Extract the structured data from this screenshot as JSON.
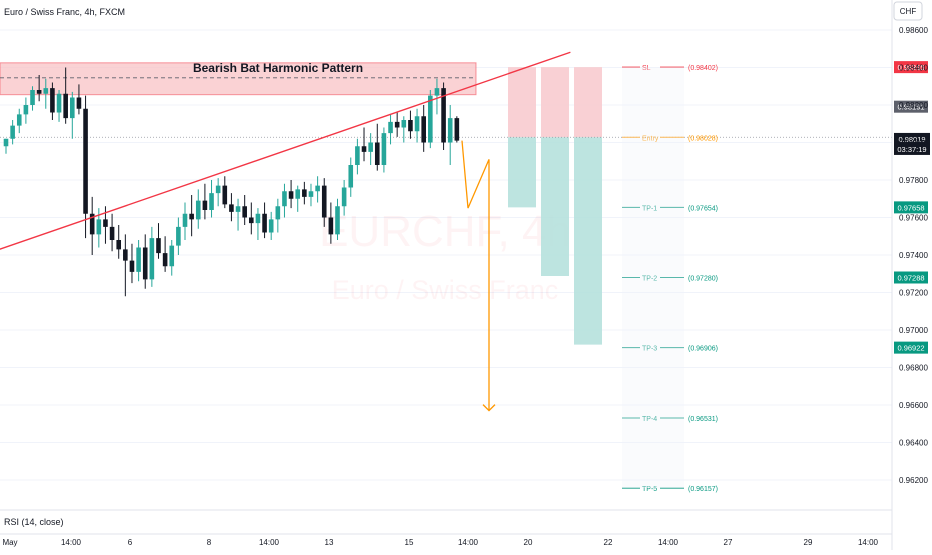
{
  "header": {
    "symbol_line": "Euro / Swiss Franc, 4h, FXCM"
  },
  "watermark": {
    "ticker": "EURCHF, 4h",
    "name": "Euro / Swiss Franc"
  },
  "currency_button": "CHF",
  "pattern_title": "Bearish Bat Harmonic Pattern",
  "rsi_label": "RSI (14, close)",
  "colors": {
    "up": "#26a69a",
    "down": "#131722",
    "trend": "#f23645",
    "zone_fill": "#f8c3c6",
    "profit_fill": "#b2dfdb",
    "loss_fill": "#f8c8cc",
    "projection": "#ff9800",
    "entry": "#ff9800",
    "sl": "#f23645",
    "tp": "#089981"
  },
  "chart_data": {
    "type": "candlestick",
    "title": "Euro / Swiss Franc, 4h, FXCM",
    "annotation": "Bearish Bat Harmonic Pattern",
    "ylim": [
      0.9604,
      0.9876
    ],
    "y_ticks": [
      "0.98600",
      "0.98400",
      "0.98200",
      "0.98000",
      "0.97800",
      "0.97600",
      "0.97400",
      "0.97200",
      "0.97000",
      "0.96800",
      "0.96600",
      "0.96400",
      "0.96200"
    ],
    "x_ticks": [
      "May",
      "14:00",
      "6",
      "8",
      "14:00",
      "13",
      "15",
      "14:00",
      "20",
      "22",
      "14:00",
      "27",
      "29",
      "14:00"
    ],
    "resistance_zone": [
      0.98255,
      0.98425
    ],
    "resistance_dashed": 0.98345,
    "current_price": {
      "value": "0.98019",
      "countdown": "03:37:19"
    },
    "last_close_label": "0.98191",
    "levels": [
      {
        "name": "SL",
        "value": "(0.98402)",
        "axis": "0.98395",
        "kind": "sl"
      },
      {
        "name": "Entry",
        "value": "(0.98028)",
        "kind": "entry"
      },
      {
        "name": "TP-1",
        "value": "(0.97654)",
        "axis": "0.97658",
        "kind": "tp"
      },
      {
        "name": "TP-2",
        "value": "(0.97280)",
        "axis": "0.97288",
        "kind": "tp"
      },
      {
        "name": "TP-3",
        "value": "(0.96906)",
        "axis": "0.96922",
        "kind": "tp"
      },
      {
        "name": "TP-4",
        "value": "(0.96531)",
        "kind": "tp"
      },
      {
        "name": "TP-5",
        "value": "(0.96157)",
        "kind": "tp"
      }
    ],
    "trade_boxes": [
      {
        "entry": 0.98028,
        "stop": 0.98402,
        "target": 0.97654
      },
      {
        "entry": 0.98028,
        "stop": 0.98402,
        "target": 0.97288
      },
      {
        "entry": 0.98028,
        "stop": 0.98402,
        "target": 0.96922
      }
    ],
    "trendline": [
      [
        -1,
        0.9743
      ],
      [
        80,
        0.9846
      ]
    ],
    "projection": [
      [
        0.9801,
        0.9787
      ],
      [
        0.9767,
        0.9791
      ],
      [
        0.9657,
        0
      ]
    ],
    "candles": [
      [
        0.9798,
        0.9802,
        0.9794,
        0.9802
      ],
      [
        0.9802,
        0.9812,
        0.9799,
        0.9809
      ],
      [
        0.9809,
        0.9818,
        0.9805,
        0.9815
      ],
      [
        0.9815,
        0.9824,
        0.981,
        0.982
      ],
      [
        0.982,
        0.983,
        0.9817,
        0.9828
      ],
      [
        0.9828,
        0.9836,
        0.9822,
        0.9826
      ],
      [
        0.9826,
        0.9834,
        0.9818,
        0.9829
      ],
      [
        0.9829,
        0.9832,
        0.9812,
        0.9816
      ],
      [
        0.9816,
        0.9828,
        0.9811,
        0.9826
      ],
      [
        0.9826,
        0.984,
        0.981,
        0.9813
      ],
      [
        0.9813,
        0.9827,
        0.9802,
        0.9824
      ],
      [
        0.9824,
        0.9831,
        0.9815,
        0.9818
      ],
      [
        0.9818,
        0.9825,
        0.9749,
        0.9762
      ],
      [
        0.9762,
        0.9771,
        0.974,
        0.9751
      ],
      [
        0.9751,
        0.9765,
        0.9744,
        0.9759
      ],
      [
        0.9759,
        0.9766,
        0.9746,
        0.9755
      ],
      [
        0.9755,
        0.9762,
        0.9742,
        0.9748
      ],
      [
        0.9748,
        0.9756,
        0.9738,
        0.9743
      ],
      [
        0.9743,
        0.9751,
        0.9718,
        0.9737
      ],
      [
        0.9737,
        0.9746,
        0.9725,
        0.9731
      ],
      [
        0.9731,
        0.9748,
        0.9726,
        0.9744
      ],
      [
        0.9744,
        0.9751,
        0.9722,
        0.9727
      ],
      [
        0.9727,
        0.9755,
        0.9723,
        0.9749
      ],
      [
        0.9749,
        0.9757,
        0.9738,
        0.9741
      ],
      [
        0.9741,
        0.975,
        0.9731,
        0.9734
      ],
      [
        0.9734,
        0.9748,
        0.9729,
        0.9745
      ],
      [
        0.9745,
        0.976,
        0.974,
        0.9755
      ],
      [
        0.9755,
        0.9768,
        0.9748,
        0.9762
      ],
      [
        0.9762,
        0.9772,
        0.975,
        0.9759
      ],
      [
        0.9759,
        0.9775,
        0.9754,
        0.9769
      ],
      [
        0.9769,
        0.9778,
        0.9759,
        0.9764
      ],
      [
        0.9764,
        0.978,
        0.976,
        0.9773
      ],
      [
        0.9773,
        0.9781,
        0.9766,
        0.9777
      ],
      [
        0.9777,
        0.9782,
        0.9765,
        0.9767
      ],
      [
        0.9767,
        0.9773,
        0.9758,
        0.9763
      ],
      [
        0.9763,
        0.977,
        0.9753,
        0.9766
      ],
      [
        0.9766,
        0.9772,
        0.9756,
        0.976
      ],
      [
        0.976,
        0.9768,
        0.9751,
        0.9757
      ],
      [
        0.9757,
        0.9765,
        0.9748,
        0.9762
      ],
      [
        0.9762,
        0.9768,
        0.9749,
        0.9752
      ],
      [
        0.9752,
        0.9763,
        0.9748,
        0.9759
      ],
      [
        0.9759,
        0.977,
        0.9752,
        0.9766
      ],
      [
        0.9766,
        0.9778,
        0.976,
        0.9774
      ],
      [
        0.9774,
        0.978,
        0.9765,
        0.977
      ],
      [
        0.977,
        0.9777,
        0.9763,
        0.9775
      ],
      [
        0.9775,
        0.9779,
        0.9767,
        0.9771
      ],
      [
        0.9771,
        0.9778,
        0.9766,
        0.9774
      ],
      [
        0.9774,
        0.9782,
        0.9768,
        0.9777
      ],
      [
        0.9777,
        0.9781,
        0.9755,
        0.976
      ],
      [
        0.976,
        0.9768,
        0.9746,
        0.9751
      ],
      [
        0.9751,
        0.977,
        0.9748,
        0.9766
      ],
      [
        0.9766,
        0.978,
        0.9761,
        0.9776
      ],
      [
        0.9776,
        0.9792,
        0.9771,
        0.9788
      ],
      [
        0.9788,
        0.9802,
        0.9783,
        0.9798
      ],
      [
        0.9798,
        0.9808,
        0.979,
        0.9795
      ],
      [
        0.9795,
        0.9805,
        0.9788,
        0.98
      ],
      [
        0.98,
        0.981,
        0.9785,
        0.9788
      ],
      [
        0.9788,
        0.9808,
        0.9784,
        0.9805
      ],
      [
        0.9805,
        0.9815,
        0.9799,
        0.9811
      ],
      [
        0.9811,
        0.9816,
        0.9803,
        0.9808
      ],
      [
        0.9808,
        0.9814,
        0.98,
        0.9812
      ],
      [
        0.9812,
        0.9817,
        0.9802,
        0.9806
      ],
      [
        0.9806,
        0.9818,
        0.98,
        0.9814
      ],
      [
        0.9814,
        0.982,
        0.9795,
        0.98
      ],
      [
        0.98,
        0.9828,
        0.9797,
        0.9825
      ],
      [
        0.9825,
        0.9834,
        0.9815,
        0.9829
      ],
      [
        0.9829,
        0.9832,
        0.9796,
        0.98
      ],
      [
        0.98,
        0.982,
        0.9788,
        0.9813
      ],
      [
        0.9813,
        0.9814,
        0.98,
        0.9801
      ]
    ]
  }
}
